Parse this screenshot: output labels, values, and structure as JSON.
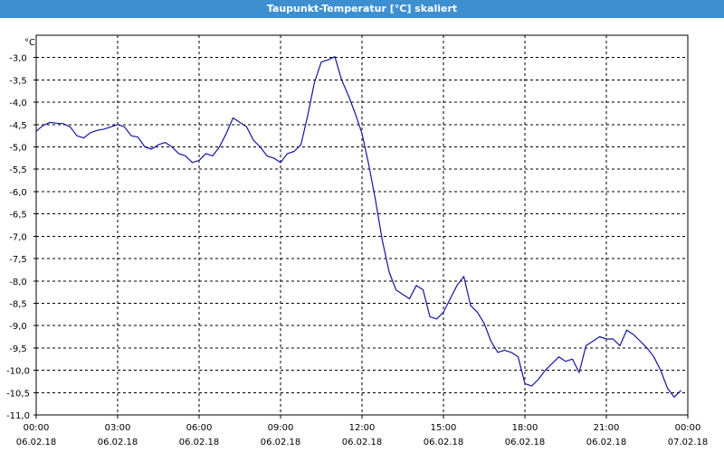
{
  "window": {
    "title": "Taupunkt-Temperatur [°C] skaliert"
  },
  "chart_data": {
    "type": "line",
    "title": "Taupunkt-Temperatur [°C] skaliert",
    "y_unit_label": "°C",
    "ylim": [
      -11.0,
      -2.5
    ],
    "xlim": [
      0,
      24
    ],
    "grid": true,
    "y_ticks": [
      {
        "value": -3.0,
        "label": "-3,0"
      },
      {
        "value": -3.5,
        "label": "-3,5"
      },
      {
        "value": -4.0,
        "label": "-4,0"
      },
      {
        "value": -4.5,
        "label": "-4,5"
      },
      {
        "value": -5.0,
        "label": "-5,0"
      },
      {
        "value": -5.5,
        "label": "-5,5"
      },
      {
        "value": -6.0,
        "label": "-6,0"
      },
      {
        "value": -6.5,
        "label": "-6,5"
      },
      {
        "value": -7.0,
        "label": "-7,0"
      },
      {
        "value": -7.5,
        "label": "-7,5"
      },
      {
        "value": -8.0,
        "label": "-8,0"
      },
      {
        "value": -8.5,
        "label": "-8,5"
      },
      {
        "value": -9.0,
        "label": "-9,0"
      },
      {
        "value": -9.5,
        "label": "-9,5"
      },
      {
        "value": -10.0,
        "label": "-10,0"
      },
      {
        "value": -10.5,
        "label": "-10,5"
      },
      {
        "value": -11.0,
        "label": "-11,0"
      }
    ],
    "x_ticks": [
      {
        "value": 0,
        "time": "00:00",
        "date": "06.02.18"
      },
      {
        "value": 3,
        "time": "03:00",
        "date": "06.02.18"
      },
      {
        "value": 6,
        "time": "06:00",
        "date": "06.02.18"
      },
      {
        "value": 9,
        "time": "09:00",
        "date": "06.02.18"
      },
      {
        "value": 12,
        "time": "12:00",
        "date": "06.02.18"
      },
      {
        "value": 15,
        "time": "15:00",
        "date": "06.02.18"
      },
      {
        "value": 18,
        "time": "18:00",
        "date": "06.02.18"
      },
      {
        "value": 21,
        "time": "21:00",
        "date": "06.02.18"
      },
      {
        "value": 24,
        "time": "00:00",
        "date": "07.02.18"
      }
    ],
    "series": [
      {
        "color": "#1414a0",
        "points": [
          [
            0.0,
            -4.65
          ],
          [
            0.25,
            -4.52
          ],
          [
            0.5,
            -4.45
          ],
          [
            0.75,
            -4.47
          ],
          [
            1.0,
            -4.48
          ],
          [
            1.25,
            -4.55
          ],
          [
            1.5,
            -4.75
          ],
          [
            1.75,
            -4.8
          ],
          [
            2.0,
            -4.68
          ],
          [
            2.25,
            -4.63
          ],
          [
            2.5,
            -4.6
          ],
          [
            2.75,
            -4.55
          ],
          [
            3.0,
            -4.5
          ],
          [
            3.25,
            -4.55
          ],
          [
            3.5,
            -4.75
          ],
          [
            3.75,
            -4.78
          ],
          [
            4.0,
            -5.0
          ],
          [
            4.25,
            -5.05
          ],
          [
            4.5,
            -4.95
          ],
          [
            4.75,
            -4.9
          ],
          [
            5.0,
            -5.0
          ],
          [
            5.25,
            -5.15
          ],
          [
            5.5,
            -5.2
          ],
          [
            5.75,
            -5.35
          ],
          [
            6.0,
            -5.3
          ],
          [
            6.25,
            -5.15
          ],
          [
            6.5,
            -5.2
          ],
          [
            6.75,
            -5.0
          ],
          [
            7.0,
            -4.7
          ],
          [
            7.25,
            -4.35
          ],
          [
            7.5,
            -4.45
          ],
          [
            7.75,
            -4.55
          ],
          [
            8.0,
            -4.85
          ],
          [
            8.25,
            -5.0
          ],
          [
            8.5,
            -5.2
          ],
          [
            8.75,
            -5.25
          ],
          [
            9.0,
            -5.35
          ],
          [
            9.25,
            -5.15
          ],
          [
            9.5,
            -5.1
          ],
          [
            9.75,
            -4.95
          ],
          [
            10.0,
            -4.3
          ],
          [
            10.25,
            -3.55
          ],
          [
            10.5,
            -3.1
          ],
          [
            10.75,
            -3.05
          ],
          [
            11.0,
            -2.98
          ],
          [
            11.25,
            -3.5
          ],
          [
            11.5,
            -3.85
          ],
          [
            11.75,
            -4.25
          ],
          [
            12.0,
            -4.7
          ],
          [
            12.25,
            -5.4
          ],
          [
            12.5,
            -6.2
          ],
          [
            12.75,
            -7.1
          ],
          [
            13.0,
            -7.8
          ],
          [
            13.25,
            -8.2
          ],
          [
            13.5,
            -8.3
          ],
          [
            13.75,
            -8.4
          ],
          [
            14.0,
            -8.1
          ],
          [
            14.25,
            -8.2
          ],
          [
            14.5,
            -8.8
          ],
          [
            14.75,
            -8.85
          ],
          [
            15.0,
            -8.7
          ],
          [
            15.25,
            -8.4
          ],
          [
            15.5,
            -8.1
          ],
          [
            15.75,
            -7.9
          ],
          [
            16.0,
            -8.55
          ],
          [
            16.25,
            -8.7
          ],
          [
            16.5,
            -8.95
          ],
          [
            16.75,
            -9.35
          ],
          [
            17.0,
            -9.6
          ],
          [
            17.25,
            -9.55
          ],
          [
            17.5,
            -9.6
          ],
          [
            17.75,
            -9.7
          ],
          [
            18.0,
            -10.3
          ],
          [
            18.25,
            -10.35
          ],
          [
            18.5,
            -10.2
          ],
          [
            18.75,
            -10.0
          ],
          [
            19.0,
            -9.85
          ],
          [
            19.25,
            -9.7
          ],
          [
            19.5,
            -9.8
          ],
          [
            19.75,
            -9.75
          ],
          [
            20.0,
            -10.05
          ],
          [
            20.25,
            -9.45
          ],
          [
            20.5,
            -9.35
          ],
          [
            20.75,
            -9.25
          ],
          [
            21.0,
            -9.3
          ],
          [
            21.25,
            -9.3
          ],
          [
            21.5,
            -9.45
          ],
          [
            21.75,
            -9.1
          ],
          [
            22.0,
            -9.2
          ],
          [
            22.25,
            -9.35
          ],
          [
            22.5,
            -9.5
          ],
          [
            22.75,
            -9.7
          ],
          [
            23.0,
            -10.0
          ],
          [
            23.25,
            -10.4
          ],
          [
            23.5,
            -10.6
          ],
          [
            23.75,
            -10.45
          ]
        ]
      }
    ]
  }
}
